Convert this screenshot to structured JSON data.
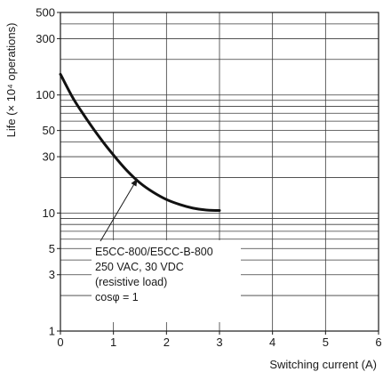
{
  "chart_data": {
    "type": "line",
    "xlabel": "Switching current (A)",
    "ylabel": "Life (× 10⁴ operations)",
    "xlim": [
      0,
      6
    ],
    "ylim": [
      1,
      500
    ],
    "yscale": "log",
    "xticks": [
      "0",
      "1",
      "2",
      "3",
      "4",
      "5",
      "6"
    ],
    "yticks": [
      "1",
      "3",
      "5",
      "10",
      "30",
      "50",
      "100",
      "300",
      "500"
    ],
    "grid": true,
    "series": [
      {
        "x": [
          0.0,
          0.25,
          0.5,
          0.75,
          1.0,
          1.25,
          1.5,
          1.75,
          2.0,
          2.25,
          2.5,
          2.75,
          3.0
        ],
        "y": [
          150,
          92,
          62,
          43,
          31,
          23,
          18,
          15,
          13,
          11.8,
          11,
          10.6,
          10.5
        ]
      }
    ],
    "annotation": {
      "lines": [
        "E5CC-800/E5CC-B-800",
        "250 VAC, 30 VDC",
        "(resistive load)",
        "cosφ = 1"
      ]
    }
  }
}
